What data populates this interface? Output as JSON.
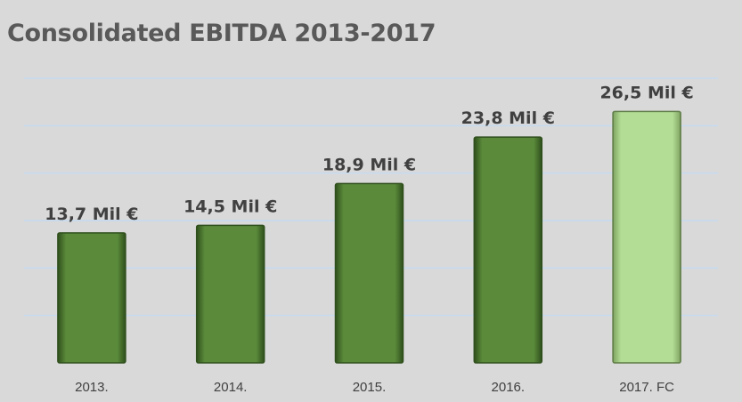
{
  "chart_data": {
    "type": "bar",
    "title": "Consolidated EBITDA 2013-2017",
    "xlabel": "",
    "ylabel": "",
    "categories": [
      "2013.",
      "2014.",
      "2015.",
      "2016.",
      "2017.  FC"
    ],
    "values": [
      13.7,
      14.5,
      18.9,
      23.8,
      26.5
    ],
    "data_labels": [
      "13,7 Mil €",
      "14,5 Mil €",
      "18,9 Mil €",
      "23,8 Mil €",
      "26,5 Mil €"
    ],
    "ylim": [
      0,
      30
    ],
    "grid": true,
    "legend": "none",
    "colors": {
      "actual_bar": "#5a8a3a",
      "actual_bar_edge": "#2f4f1c",
      "forecast_bar": "#b3dd95",
      "forecast_bar_edge": "#5c7a44",
      "gridline": "#c5daef",
      "label_text": "#404040",
      "tick_text": "#404040"
    },
    "forecast_index": 4
  }
}
